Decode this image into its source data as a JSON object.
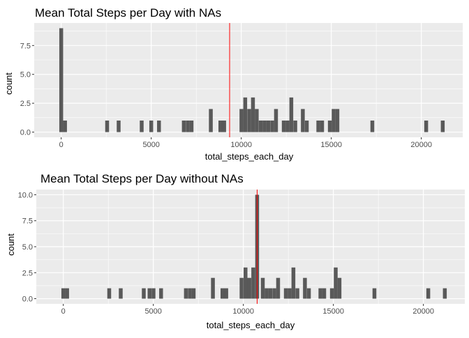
{
  "chart_data": [
    {
      "type": "bar",
      "title": "Mean Total Steps per Day with NAs",
      "xlabel": "total_steps_each_day",
      "ylabel": "count",
      "xlim": [
        -1500,
        22300
      ],
      "ylim": [
        -0.45,
        9.45
      ],
      "xticks": [
        0,
        5000,
        10000,
        15000,
        20000
      ],
      "xtick_labels": [
        "0",
        "5000",
        "10000",
        "15000",
        "20000"
      ],
      "yticks": [
        0,
        2.5,
        5,
        7.5
      ],
      "ytick_labels": [
        "0.0",
        "2.5",
        "5.0",
        "7.5"
      ],
      "grid": true,
      "bin_width": 213,
      "bars": [
        {
          "x": 0,
          "count": 9
        },
        {
          "x": 213,
          "count": 1
        },
        {
          "x": 2550,
          "count": 1
        },
        {
          "x": 3190,
          "count": 1
        },
        {
          "x": 4470,
          "count": 1
        },
        {
          "x": 5000,
          "count": 1
        },
        {
          "x": 5430,
          "count": 1
        },
        {
          "x": 6810,
          "count": 1
        },
        {
          "x": 7030,
          "count": 1
        },
        {
          "x": 7240,
          "count": 1
        },
        {
          "x": 8310,
          "count": 2
        },
        {
          "x": 8840,
          "count": 1
        },
        {
          "x": 9050,
          "count": 1
        },
        {
          "x": 10010,
          "count": 2
        },
        {
          "x": 10220,
          "count": 3
        },
        {
          "x": 10440,
          "count": 2
        },
        {
          "x": 10650,
          "count": 3
        },
        {
          "x": 10860,
          "count": 2
        },
        {
          "x": 11080,
          "count": 1
        },
        {
          "x": 11290,
          "count": 1
        },
        {
          "x": 11500,
          "count": 1
        },
        {
          "x": 11720,
          "count": 1
        },
        {
          "x": 11930,
          "count": 2
        },
        {
          "x": 12360,
          "count": 1
        },
        {
          "x": 12570,
          "count": 1
        },
        {
          "x": 12780,
          "count": 3
        },
        {
          "x": 13000,
          "count": 1
        },
        {
          "x": 13420,
          "count": 2
        },
        {
          "x": 13640,
          "count": 1
        },
        {
          "x": 14280,
          "count": 1
        },
        {
          "x": 14490,
          "count": 1
        },
        {
          "x": 14920,
          "count": 1
        },
        {
          "x": 15130,
          "count": 2
        },
        {
          "x": 15340,
          "count": 2
        },
        {
          "x": 17280,
          "count": 1
        },
        {
          "x": 20270,
          "count": 1
        },
        {
          "x": 21190,
          "count": 1
        }
      ],
      "mean_line": 9354,
      "colors": {
        "bar": "#595959",
        "mean_line": "#ff0000",
        "panel": "#ebebeb",
        "grid": "#ffffff"
      }
    },
    {
      "type": "bar",
      "title": "Mean Total Steps per Day without NAs",
      "xlabel": "total_steps_each_day",
      "ylabel": "count",
      "xlim": [
        -1500,
        22300
      ],
      "ylim": [
        -0.5,
        10.5
      ],
      "xticks": [
        0,
        5000,
        10000,
        15000,
        20000
      ],
      "xtick_labels": [
        "0",
        "5000",
        "10000",
        "15000",
        "20000"
      ],
      "yticks": [
        0,
        2.5,
        5,
        7.5,
        10
      ],
      "ytick_labels": [
        "0.0",
        "2.5",
        "5.0",
        "7.5",
        "10.0"
      ],
      "grid": true,
      "bin_width": 213,
      "bars": [
        {
          "x": 0,
          "count": 1
        },
        {
          "x": 213,
          "count": 1
        },
        {
          "x": 2550,
          "count": 1
        },
        {
          "x": 3190,
          "count": 1
        },
        {
          "x": 4470,
          "count": 1
        },
        {
          "x": 4790,
          "count": 1
        },
        {
          "x": 5010,
          "count": 1
        },
        {
          "x": 5430,
          "count": 1
        },
        {
          "x": 6810,
          "count": 1
        },
        {
          "x": 7030,
          "count": 1
        },
        {
          "x": 7240,
          "count": 1
        },
        {
          "x": 8310,
          "count": 2
        },
        {
          "x": 8840,
          "count": 1
        },
        {
          "x": 9050,
          "count": 1
        },
        {
          "x": 9900,
          "count": 2
        },
        {
          "x": 10120,
          "count": 3
        },
        {
          "x": 10330,
          "count": 2
        },
        {
          "x": 10550,
          "count": 3
        },
        {
          "x": 10766,
          "count": 10
        },
        {
          "x": 11080,
          "count": 2
        },
        {
          "x": 11290,
          "count": 1
        },
        {
          "x": 11500,
          "count": 1
        },
        {
          "x": 11720,
          "count": 1
        },
        {
          "x": 11930,
          "count": 2
        },
        {
          "x": 12360,
          "count": 1
        },
        {
          "x": 12570,
          "count": 1
        },
        {
          "x": 12780,
          "count": 3
        },
        {
          "x": 13000,
          "count": 1
        },
        {
          "x": 13420,
          "count": 2
        },
        {
          "x": 13640,
          "count": 1
        },
        {
          "x": 14280,
          "count": 1
        },
        {
          "x": 14490,
          "count": 1
        },
        {
          "x": 14920,
          "count": 1
        },
        {
          "x": 15130,
          "count": 3
        },
        {
          "x": 15340,
          "count": 2
        },
        {
          "x": 17280,
          "count": 1
        },
        {
          "x": 20270,
          "count": 1
        },
        {
          "x": 21190,
          "count": 1
        }
      ],
      "mean_line": 10766,
      "colors": {
        "bar": "#595959",
        "mean_line": "#ff0000",
        "panel": "#ebebeb",
        "grid": "#ffffff"
      }
    }
  ]
}
